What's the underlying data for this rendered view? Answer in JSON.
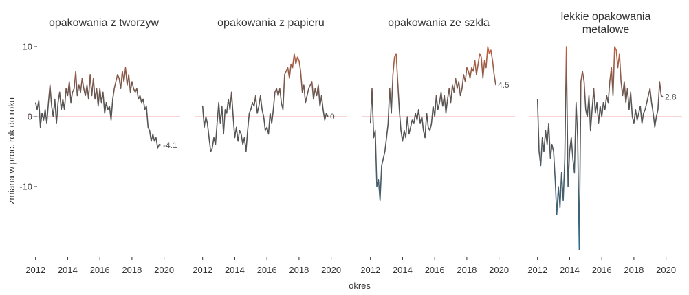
{
  "chart_data": {
    "type": "line",
    "xlabel": "okres",
    "ylabel": "zmiana w proc. rok do roku",
    "xlim": [
      2011.5,
      2021.0
    ],
    "ylim": [
      -19.5,
      10.5
    ],
    "x_ticks": [
      2012,
      2014,
      2016,
      2018,
      2020
    ],
    "y_ticks": [
      10,
      0,
      -10
    ],
    "zero_line": 0,
    "grid": false,
    "colors": {
      "low": "#2d6d8e",
      "mid": "#555555",
      "high": "#c2603f",
      "zero_line": "#f2a8a8",
      "text": "#333333"
    },
    "facets": [
      {
        "title": "opakowania z tworzyw",
        "end_label": "-4.1",
        "x": [
          2012.0,
          2012.1,
          2012.2,
          2012.3,
          2012.4,
          2012.5,
          2012.6,
          2012.7,
          2012.8,
          2012.9,
          2013.0,
          2013.1,
          2013.2,
          2013.3,
          2013.4,
          2013.5,
          2013.6,
          2013.7,
          2013.8,
          2013.9,
          2014.0,
          2014.1,
          2014.2,
          2014.3,
          2014.4,
          2014.5,
          2014.6,
          2014.7,
          2014.8,
          2014.9,
          2015.0,
          2015.1,
          2015.2,
          2015.3,
          2015.4,
          2015.5,
          2015.6,
          2015.7,
          2015.8,
          2015.9,
          2016.0,
          2016.1,
          2016.2,
          2016.3,
          2016.4,
          2016.5,
          2016.6,
          2016.7,
          2016.8,
          2016.9,
          2017.0,
          2017.1,
          2017.2,
          2017.3,
          2017.4,
          2017.5,
          2017.6,
          2017.7,
          2017.8,
          2017.9,
          2018.0,
          2018.1,
          2018.2,
          2018.3,
          2018.4,
          2018.5,
          2018.6,
          2018.7,
          2018.8,
          2018.9,
          2019.0,
          2019.1,
          2019.2,
          2019.3,
          2019.4,
          2019.5,
          2019.6,
          2019.7,
          2019.8
        ],
        "y": [
          2.0,
          1.0,
          2.3,
          -1.5,
          0.5,
          -0.5,
          1.0,
          -1.0,
          2.0,
          4.5,
          1.5,
          0.0,
          2.5,
          -1.0,
          2.0,
          3.5,
          1.0,
          2.5,
          1.0,
          4.0,
          3.0,
          5.0,
          2.0,
          3.5,
          4.0,
          6.5,
          3.0,
          4.5,
          3.5,
          5.5,
          4.0,
          3.0,
          4.5,
          2.5,
          6.0,
          3.0,
          5.5,
          2.5,
          4.0,
          1.5,
          4.0,
          2.0,
          3.5,
          0.5,
          2.0,
          1.0,
          1.5,
          -0.5,
          2.5,
          4.0,
          5.0,
          6.0,
          5.5,
          4.0,
          6.5,
          5.0,
          7.0,
          4.5,
          6.0,
          3.5,
          5.0,
          4.0,
          3.5,
          4.0,
          2.5,
          3.0,
          2.0,
          2.5,
          1.0,
          1.5,
          -1.5,
          -2.0,
          -3.5,
          -2.5,
          -3.5,
          -3.0,
          -4.5,
          -4.0,
          -4.1
        ]
      },
      {
        "title": "opakowania z papieru",
        "end_label": "0",
        "x": [
          2012.0,
          2012.1,
          2012.2,
          2012.3,
          2012.4,
          2012.5,
          2012.6,
          2012.7,
          2012.8,
          2012.9,
          2013.0,
          2013.1,
          2013.2,
          2013.3,
          2013.4,
          2013.5,
          2013.6,
          2013.7,
          2013.8,
          2013.9,
          2014.0,
          2014.1,
          2014.2,
          2014.3,
          2014.4,
          2014.5,
          2014.6,
          2014.7,
          2014.8,
          2014.9,
          2015.0,
          2015.1,
          2015.2,
          2015.3,
          2015.4,
          2015.5,
          2015.6,
          2015.7,
          2015.8,
          2015.9,
          2016.0,
          2016.1,
          2016.2,
          2016.3,
          2016.4,
          2016.5,
          2016.6,
          2016.7,
          2016.8,
          2016.9,
          2017.0,
          2017.1,
          2017.2,
          2017.3,
          2017.4,
          2017.5,
          2017.6,
          2017.7,
          2017.8,
          2017.9,
          2018.0,
          2018.1,
          2018.2,
          2018.3,
          2018.4,
          2018.5,
          2018.6,
          2018.7,
          2018.8,
          2018.9,
          2019.0,
          2019.1,
          2019.2,
          2019.3,
          2019.4,
          2019.5,
          2019.6,
          2019.7,
          2019.8
        ],
        "y": [
          1.5,
          -1.5,
          0.0,
          -1.0,
          -3.0,
          -5.0,
          -4.5,
          -3.0,
          -4.0,
          -1.0,
          2.0,
          -1.0,
          1.5,
          -2.5,
          1.0,
          0.5,
          2.5,
          1.0,
          3.5,
          0.0,
          -3.0,
          -1.5,
          -3.5,
          -2.0,
          -2.5,
          -4.0,
          -3.0,
          -5.0,
          -2.0,
          0.5,
          1.0,
          2.0,
          1.5,
          3.0,
          0.5,
          1.5,
          3.0,
          1.0,
          0.0,
          -2.0,
          -1.5,
          -2.5,
          0.5,
          -1.0,
          1.0,
          3.5,
          4.0,
          3.0,
          4.0,
          2.0,
          1.0,
          6.0,
          6.5,
          7.0,
          5.5,
          7.5,
          7.0,
          9.0,
          7.5,
          8.5,
          8.0,
          6.5,
          3.5,
          4.5,
          2.0,
          3.0,
          4.0,
          4.5,
          5.0,
          2.5,
          4.0,
          3.0,
          4.5,
          1.5,
          3.0,
          1.0,
          -0.5,
          0.5,
          0.0
        ]
      },
      {
        "title": "opakowania ze szkła",
        "end_label": "4.5",
        "x": [
          2012.0,
          2012.1,
          2012.2,
          2012.3,
          2012.4,
          2012.5,
          2012.6,
          2012.7,
          2012.8,
          2012.9,
          2013.0,
          2013.1,
          2013.2,
          2013.3,
          2013.4,
          2013.5,
          2013.6,
          2013.7,
          2013.8,
          2013.9,
          2014.0,
          2014.1,
          2014.2,
          2014.3,
          2014.4,
          2014.5,
          2014.6,
          2014.7,
          2014.8,
          2014.9,
          2015.0,
          2015.1,
          2015.2,
          2015.3,
          2015.4,
          2015.5,
          2015.6,
          2015.7,
          2015.8,
          2015.9,
          2016.0,
          2016.1,
          2016.2,
          2016.3,
          2016.4,
          2016.5,
          2016.6,
          2016.7,
          2016.8,
          2016.9,
          2017.0,
          2017.1,
          2017.2,
          2017.3,
          2017.4,
          2017.5,
          2017.6,
          2017.7,
          2017.8,
          2017.9,
          2018.0,
          2018.1,
          2018.2,
          2018.3,
          2018.4,
          2018.5,
          2018.6,
          2018.7,
          2018.8,
          2018.9,
          2019.0,
          2019.1,
          2019.2,
          2019.3,
          2019.4,
          2019.5,
          2019.6,
          2019.7,
          2019.8
        ],
        "y": [
          -1.0,
          4.0,
          -3.0,
          -2.0,
          -10.0,
          -9.0,
          -12.0,
          -7.0,
          -6.0,
          -5.0,
          -3.0,
          -1.0,
          4.0,
          0.5,
          6.0,
          8.5,
          9.0,
          5.0,
          1.0,
          -2.0,
          -3.5,
          -2.0,
          -3.0,
          0.0,
          -2.5,
          -1.5,
          -0.5,
          -1.0,
          0.5,
          -0.5,
          1.0,
          -1.0,
          0.0,
          -2.0,
          -3.0,
          0.5,
          -1.5,
          -2.0,
          -1.0,
          1.5,
          0.0,
          3.0,
          1.0,
          2.0,
          3.5,
          1.5,
          3.0,
          0.5,
          2.5,
          4.0,
          2.0,
          4.5,
          3.5,
          5.5,
          4.0,
          5.0,
          3.0,
          4.0,
          6.0,
          5.0,
          7.0,
          6.5,
          5.5,
          7.0,
          6.5,
          8.0,
          6.0,
          7.5,
          9.0,
          8.5,
          5.5,
          8.0,
          7.0,
          10.0,
          9.0,
          9.5,
          8.0,
          6.0,
          4.5
        ]
      },
      {
        "title": "lekkie opakowania metalowe",
        "end_label": "2.8",
        "x": [
          2012.0,
          2012.1,
          2012.2,
          2012.3,
          2012.4,
          2012.5,
          2012.6,
          2012.7,
          2012.8,
          2012.9,
          2013.0,
          2013.1,
          2013.2,
          2013.3,
          2013.4,
          2013.5,
          2013.6,
          2013.7,
          2013.8,
          2013.9,
          2014.0,
          2014.1,
          2014.2,
          2014.3,
          2014.4,
          2014.5,
          2014.6,
          2014.7,
          2014.8,
          2014.9,
          2015.0,
          2015.1,
          2015.2,
          2015.3,
          2015.4,
          2015.5,
          2015.6,
          2015.7,
          2015.8,
          2015.9,
          2016.0,
          2016.1,
          2016.2,
          2016.3,
          2016.4,
          2016.5,
          2016.6,
          2016.7,
          2016.8,
          2016.9,
          2017.0,
          2017.1,
          2017.2,
          2017.3,
          2017.4,
          2017.5,
          2017.6,
          2017.7,
          2017.8,
          2017.9,
          2018.0,
          2018.1,
          2018.2,
          2018.3,
          2018.4,
          2018.5,
          2018.6,
          2018.7,
          2018.8,
          2018.9,
          2019.0,
          2019.1,
          2019.2,
          2019.3,
          2019.4,
          2019.5,
          2019.6,
          2019.7,
          2019.8
        ],
        "y": [
          2.5,
          -5.0,
          -7.0,
          -3.0,
          -5.0,
          -2.0,
          -4.0,
          -1.0,
          -6.0,
          -4.0,
          -5.0,
          -9.0,
          -14.0,
          -10.0,
          -13.0,
          -8.0,
          -12.0,
          -6.0,
          10.0,
          -10.0,
          -5.0,
          -3.0,
          -6.0,
          -8.0,
          2.0,
          -3.0,
          -19.0,
          5.0,
          6.5,
          5.0,
          1.0,
          0.0,
          3.0,
          -2.0,
          1.0,
          4.0,
          0.5,
          2.0,
          -1.0,
          1.5,
          0.0,
          2.0,
          1.0,
          3.0,
          2.0,
          5.0,
          7.0,
          3.0,
          10.0,
          9.5,
          7.0,
          9.0,
          5.0,
          3.0,
          5.0,
          2.0,
          4.0,
          1.0,
          3.5,
          0.0,
          -1.0,
          1.0,
          -0.5,
          0.5,
          1.5,
          -1.0,
          0.5,
          1.0,
          2.0,
          3.0,
          4.0,
          2.0,
          0.5,
          -1.5,
          0.0,
          1.0,
          5.0,
          3.0,
          2.8
        ]
      }
    ]
  }
}
